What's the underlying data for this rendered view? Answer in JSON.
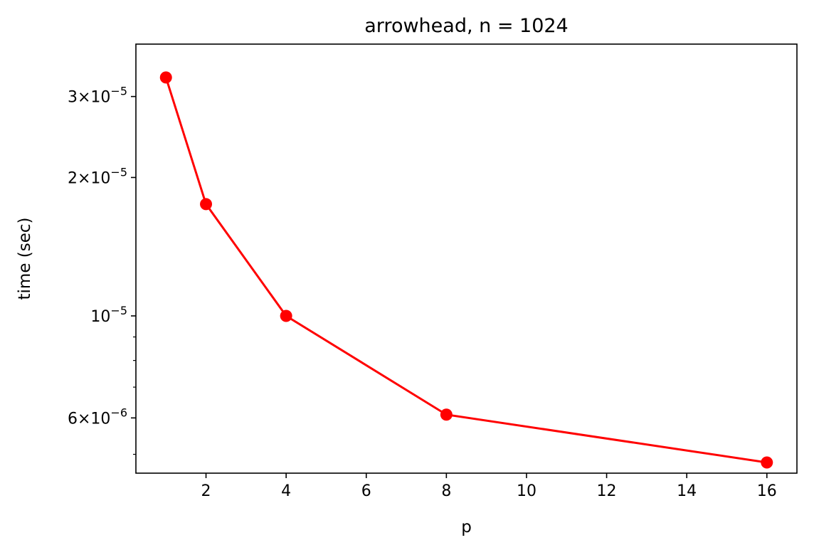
{
  "chart_data": {
    "type": "line",
    "title": "arrowhead, n = 1024",
    "xlabel": "p",
    "ylabel": "time (sec)",
    "x": [
      1,
      2,
      4,
      8,
      16
    ],
    "series": [
      {
        "values": [
          3.3e-05,
          1.75e-05,
          1e-05,
          6.1e-06,
          4.8e-06
        ],
        "color": "#ff0000",
        "marker": "circle"
      }
    ],
    "yscale": "log",
    "xlim": [
      0.25,
      16.75
    ],
    "ylim": [
      4.55e-06,
      3.9e-05
    ],
    "xticks": [
      {
        "value": 2,
        "label": "2"
      },
      {
        "value": 4,
        "label": "4"
      },
      {
        "value": 6,
        "label": "6"
      },
      {
        "value": 8,
        "label": "8"
      },
      {
        "value": 10,
        "label": "10"
      },
      {
        "value": 12,
        "label": "12"
      },
      {
        "value": 14,
        "label": "14"
      },
      {
        "value": 16,
        "label": "16"
      }
    ],
    "yticks_major": [
      {
        "value": 3e-05,
        "mantissa": "3",
        "exponent": "−5"
      },
      {
        "value": 2e-05,
        "mantissa": "2",
        "exponent": "−5"
      },
      {
        "value": 1e-05,
        "mantissa": "",
        "exponent": "−5"
      },
      {
        "value": 6e-06,
        "mantissa": "6",
        "exponent": "−6"
      }
    ],
    "yticks_minor": [
      5e-06,
      7e-06,
      8e-06,
      9e-06,
      4e-05
    ],
    "grid": false
  }
}
